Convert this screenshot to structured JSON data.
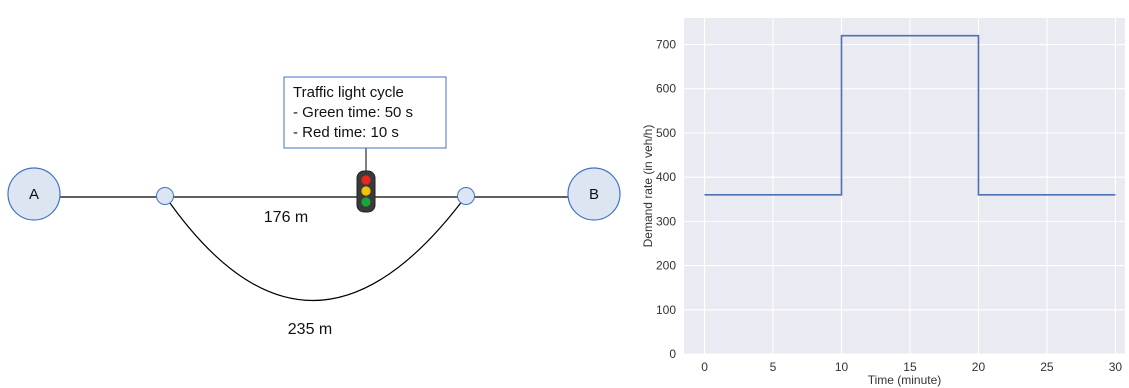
{
  "diagram": {
    "node_a_label": "A",
    "node_b_label": "B",
    "top_link_length": "176 m",
    "bottom_link_length": "235 m",
    "callout": {
      "title": "Traffic light cycle",
      "line1": "- Green time: 50 s",
      "line2": "- Red time: 10 s"
    },
    "colors": {
      "node_fill": "#dce6f2",
      "node_stroke": "#4472c4",
      "light_red": "#e8261b",
      "light_yellow": "#f5c400",
      "light_green": "#1aa43a",
      "light_body": "#3a3a3a"
    }
  },
  "chart_data": {
    "type": "line",
    "xlabel": "Time (minute)",
    "ylabel": "Demand rate (in veh/h)",
    "xlim": [
      -1.5,
      30.7
    ],
    "ylim": [
      0,
      760
    ],
    "xticks": [
      0,
      5,
      10,
      15,
      20,
      25,
      30
    ],
    "yticks": [
      0,
      100,
      200,
      300,
      400,
      500,
      600,
      700
    ],
    "grid": true,
    "series": [
      {
        "x": [
          0,
          10,
          10,
          20,
          20,
          30
        ],
        "y": [
          360,
          360,
          720,
          720,
          360,
          360
        ],
        "color": "#4c72b0"
      }
    ],
    "background": "#eaeaf2"
  }
}
